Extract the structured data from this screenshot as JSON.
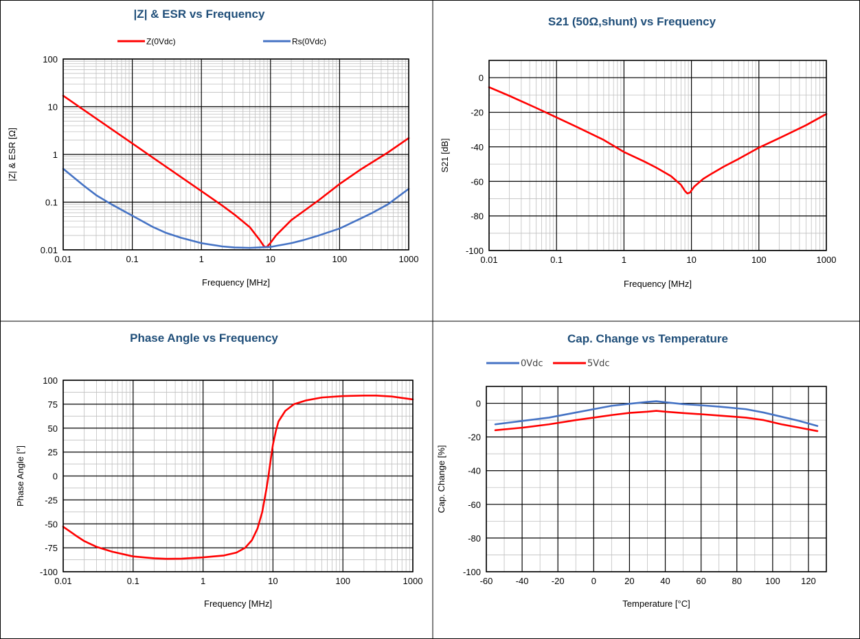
{
  "colors": {
    "red": "#FF0000",
    "blue": "#4472C4",
    "title": "#1F4E79"
  },
  "chart_data": [
    {
      "id": "impedance",
      "type": "line",
      "title": "|Z| & ESR vs Frequency",
      "xlabel": "Frequency [MHz]",
      "ylabel": "|Z| & ESR [Ω]",
      "xscale": "log",
      "yscale": "log",
      "xlim": [
        0.01,
        1000
      ],
      "ylim": [
        0.01,
        100
      ],
      "xticks": [
        "0.01",
        "0.1",
        "1",
        "10",
        "100",
        "1000"
      ],
      "yticks": [
        "0.01",
        "0.1",
        "1",
        "10",
        "100"
      ],
      "grid": true,
      "legend": "top",
      "series": [
        {
          "name": "Z(0Vdc)",
          "color": "#FF0000",
          "x": [
            0.01,
            0.02,
            0.05,
            0.1,
            0.2,
            0.5,
            1,
            2,
            3,
            5,
            7,
            8,
            8.5,
            9,
            10,
            12,
            20,
            50,
            100,
            200,
            500,
            1000
          ],
          "y": [
            17,
            8.5,
            3.4,
            1.7,
            0.85,
            0.34,
            0.17,
            0.085,
            0.055,
            0.03,
            0.016,
            0.012,
            0.0113,
            0.0118,
            0.014,
            0.02,
            0.042,
            0.11,
            0.24,
            0.48,
            1.1,
            2.2
          ]
        },
        {
          "name": "Rs(0Vdc)",
          "color": "#4472C4",
          "x": [
            0.01,
            0.02,
            0.03,
            0.05,
            0.1,
            0.2,
            0.3,
            0.5,
            1,
            2,
            3,
            5,
            10,
            20,
            30,
            50,
            100,
            200,
            300,
            500,
            1000
          ],
          "y": [
            0.5,
            0.22,
            0.14,
            0.09,
            0.052,
            0.03,
            0.023,
            0.018,
            0.0138,
            0.0118,
            0.0112,
            0.011,
            0.0115,
            0.0138,
            0.016,
            0.02,
            0.028,
            0.045,
            0.06,
            0.09,
            0.19
          ]
        }
      ]
    },
    {
      "id": "s21",
      "type": "line",
      "title": "S21 (50Ω,shunt) vs Frequency",
      "xlabel": "Frequency [MHz]",
      "ylabel": "S21 [dB]",
      "xscale": "log",
      "xlim": [
        0.01,
        1000
      ],
      "ylim": [
        -100,
        10
      ],
      "xticks": [
        "0.01",
        "0.1",
        "1",
        "10",
        "100",
        "1000"
      ],
      "yticks": [
        "0",
        "-20",
        "-40",
        "-60",
        "-80",
        "-100"
      ],
      "grid": true,
      "series": [
        {
          "color": "#FF0000",
          "x": [
            0.01,
            0.02,
            0.05,
            0.1,
            0.2,
            0.5,
            1,
            2,
            3,
            5,
            7,
            8,
            8.7,
            9.5,
            11,
            15,
            20,
            30,
            50,
            100,
            200,
            500,
            1000
          ],
          "y": [
            -5.5,
            -10.5,
            -17.5,
            -23,
            -28.5,
            -36,
            -43,
            -48.5,
            -52,
            -57,
            -62,
            -65.5,
            -67,
            -66.5,
            -63,
            -58.5,
            -55.5,
            -51.5,
            -47,
            -40.5,
            -35,
            -27.5,
            -21
          ]
        }
      ]
    },
    {
      "id": "phase",
      "type": "line",
      "title": "Phase Angle vs Frequency",
      "xlabel": "Frequency [MHz]",
      "ylabel": "Phase Angle [°]",
      "xscale": "log",
      "xlim": [
        0.01,
        1000
      ],
      "ylim": [
        -100,
        100
      ],
      "xticks": [
        "0.01",
        "0.1",
        "1",
        "10",
        "100",
        "1000"
      ],
      "yticks": [
        "100",
        "75",
        "50",
        "25",
        "0",
        "-25",
        "-50",
        "-75",
        "-100"
      ],
      "grid": true,
      "series": [
        {
          "color": "#FF0000",
          "x": [
            0.01,
            0.015,
            0.02,
            0.03,
            0.05,
            0.1,
            0.2,
            0.3,
            0.5,
            1,
            2,
            3,
            4,
            5,
            6,
            7,
            8,
            8.5,
            9,
            9.5,
            10,
            11,
            12,
            15,
            20,
            30,
            50,
            100,
            200,
            300,
            500,
            1000
          ],
          "y": [
            -53,
            -62,
            -68,
            -74,
            -79,
            -84,
            -86,
            -86.5,
            -86.3,
            -85,
            -83,
            -80,
            -75,
            -67,
            -55,
            -38,
            -15,
            -3,
            10,
            22,
            33,
            47,
            57,
            68,
            75,
            79,
            82,
            83.5,
            84,
            84,
            83,
            80
          ]
        }
      ]
    },
    {
      "id": "temperature",
      "type": "line",
      "title": "Cap. Change vs Temperature",
      "xlabel": "Temperature [°C]",
      "ylabel": "Cap. Change [%]",
      "xlim": [
        -60,
        130
      ],
      "ylim": [
        -100,
        10
      ],
      "xticks": [
        "-60",
        "-40",
        "-20",
        "0",
        "20",
        "40",
        "60",
        "80",
        "100",
        "120"
      ],
      "yticks": [
        "0",
        "-20",
        "-40",
        "-60",
        "-80",
        "-100"
      ],
      "grid": true,
      "legend": "top-left",
      "series": [
        {
          "name": "0Vdc",
          "color": "#4472C4",
          "x": [
            -55,
            -40,
            -25,
            -10,
            0,
            10,
            20,
            30,
            35,
            40,
            50,
            60,
            70,
            85,
            95,
            105,
            115,
            125
          ],
          "y": [
            -12.5,
            -10.5,
            -8.5,
            -5.5,
            -3.5,
            -1.5,
            -0.3,
            0.8,
            1.2,
            0.6,
            -0.5,
            -1.2,
            -2,
            -3.5,
            -5.5,
            -8,
            -10.5,
            -13.5
          ]
        },
        {
          "name": "5Vdc",
          "color": "#FF0000",
          "x": [
            -55,
            -40,
            -25,
            -10,
            0,
            10,
            20,
            30,
            35,
            40,
            50,
            60,
            70,
            85,
            95,
            105,
            115,
            125
          ],
          "y": [
            -16,
            -14.5,
            -12.5,
            -10,
            -8.5,
            -7,
            -5.7,
            -5,
            -4.5,
            -5,
            -5.8,
            -6.5,
            -7.3,
            -8.5,
            -10,
            -12.5,
            -14.5,
            -16.5
          ]
        }
      ]
    }
  ]
}
